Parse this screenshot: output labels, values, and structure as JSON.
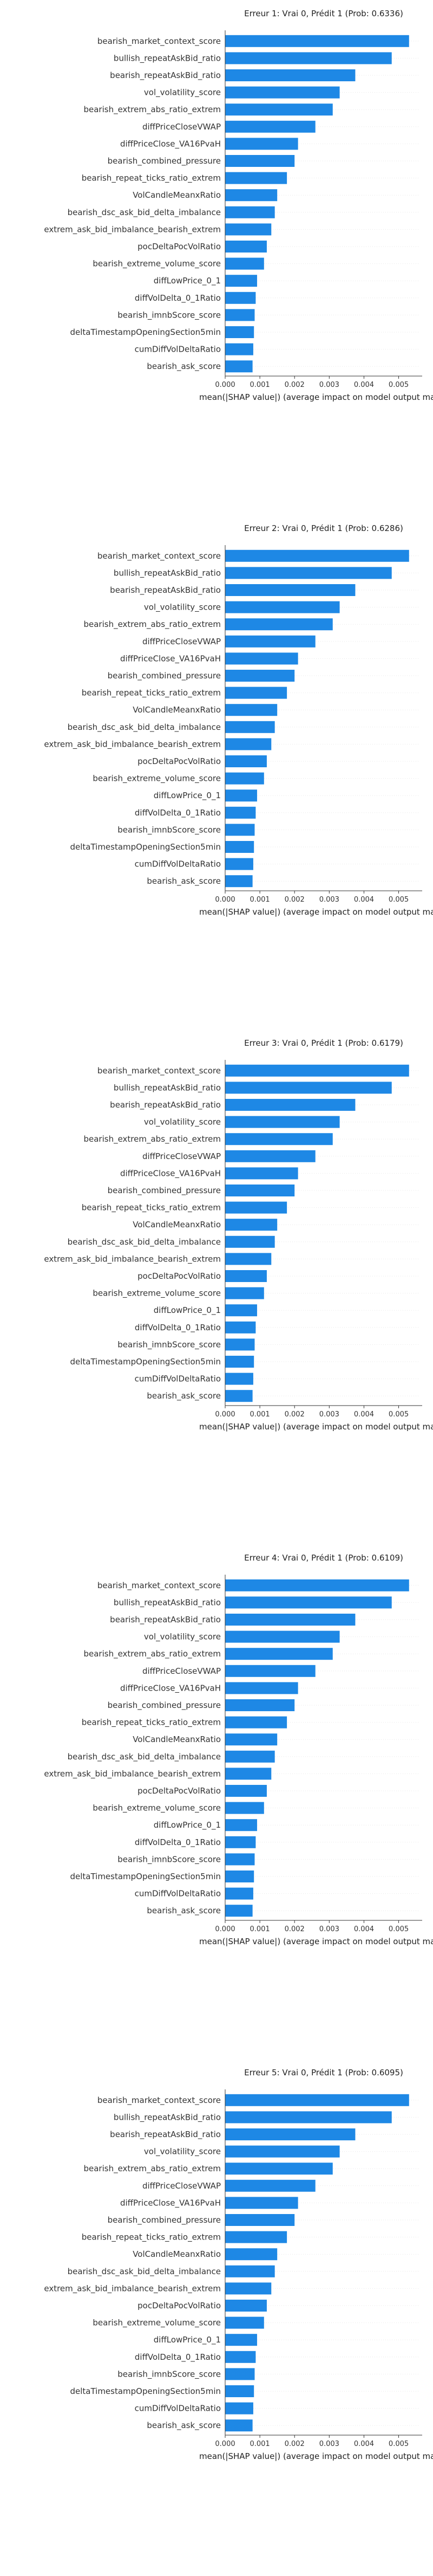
{
  "chart_data": [
    {
      "type": "bar",
      "orientation": "horizontal",
      "title": "Erreur 1: Vrai 0, Prédit 1 (Prob: 0.6336)",
      "xlabel": "mean(|SHAP value|) (average impact on model output magnitude)",
      "xlim": [
        0,
        0.0056
      ],
      "xticks": [
        "0.000",
        "0.001",
        "0.002",
        "0.003",
        "0.004",
        "0.005"
      ],
      "bar_color": "#1e88e5",
      "categories": [
        "bearish_market_context_score",
        "bullish_repeatAskBid_ratio",
        "bearish_repeatAskBid_ratio",
        "vol_volatility_score",
        "bearish_extrem_abs_ratio_extrem",
        "diffPriceCloseVWAP",
        "diffPriceClose_VA16PvaH",
        "bearish_combined_pressure",
        "bearish_repeat_ticks_ratio_extrem",
        "VolCandleMeanxRatio",
        "bearish_dsc_ask_bid_delta_imbalance",
        "extrem_ask_bid_imbalance_bearish_extrem",
        "pocDeltaPocVolRatio",
        "bearish_extreme_volume_score",
        "diffLowPrice_0_1",
        "diffVolDelta_0_1Ratio",
        "bearish_imnbScore_score",
        "deltaTimestampOpeningSection5min",
        "cumDiffVolDeltaRatio",
        "bearish_ask_score"
      ],
      "values": [
        0.0053,
        0.0048,
        0.00375,
        0.0033,
        0.0031,
        0.0026,
        0.0021,
        0.002,
        0.00178,
        0.0015,
        0.00143,
        0.00133,
        0.0012,
        0.00112,
        0.00092,
        0.00088,
        0.00085,
        0.00083,
        0.00081,
        0.00079
      ]
    },
    {
      "type": "bar",
      "orientation": "horizontal",
      "title": "Erreur 2: Vrai 0, Prédit 1 (Prob: 0.6286)",
      "xlabel": "mean(|SHAP value|) (average impact on model output magnitude)",
      "xlim": [
        0,
        0.0056
      ],
      "xticks": [
        "0.000",
        "0.001",
        "0.002",
        "0.003",
        "0.004",
        "0.005"
      ],
      "bar_color": "#1e88e5",
      "categories": [
        "bearish_market_context_score",
        "bullish_repeatAskBid_ratio",
        "bearish_repeatAskBid_ratio",
        "vol_volatility_score",
        "bearish_extrem_abs_ratio_extrem",
        "diffPriceCloseVWAP",
        "diffPriceClose_VA16PvaH",
        "bearish_combined_pressure",
        "bearish_repeat_ticks_ratio_extrem",
        "VolCandleMeanxRatio",
        "bearish_dsc_ask_bid_delta_imbalance",
        "extrem_ask_bid_imbalance_bearish_extrem",
        "pocDeltaPocVolRatio",
        "bearish_extreme_volume_score",
        "diffLowPrice_0_1",
        "diffVolDelta_0_1Ratio",
        "bearish_imnbScore_score",
        "deltaTimestampOpeningSection5min",
        "cumDiffVolDeltaRatio",
        "bearish_ask_score"
      ],
      "values": [
        0.0053,
        0.0048,
        0.00375,
        0.0033,
        0.0031,
        0.0026,
        0.0021,
        0.002,
        0.00178,
        0.0015,
        0.00143,
        0.00133,
        0.0012,
        0.00112,
        0.00092,
        0.00088,
        0.00085,
        0.00083,
        0.00081,
        0.00079
      ]
    },
    {
      "type": "bar",
      "orientation": "horizontal",
      "title": "Erreur 3: Vrai 0, Prédit 1 (Prob: 0.6179)",
      "xlabel": "mean(|SHAP value|) (average impact on model output magnitude)",
      "xlim": [
        0,
        0.0056
      ],
      "xticks": [
        "0.000",
        "0.001",
        "0.002",
        "0.003",
        "0.004",
        "0.005"
      ],
      "bar_color": "#1e88e5",
      "categories": [
        "bearish_market_context_score",
        "bullish_repeatAskBid_ratio",
        "bearish_repeatAskBid_ratio",
        "vol_volatility_score",
        "bearish_extrem_abs_ratio_extrem",
        "diffPriceCloseVWAP",
        "diffPriceClose_VA16PvaH",
        "bearish_combined_pressure",
        "bearish_repeat_ticks_ratio_extrem",
        "VolCandleMeanxRatio",
        "bearish_dsc_ask_bid_delta_imbalance",
        "extrem_ask_bid_imbalance_bearish_extrem",
        "pocDeltaPocVolRatio",
        "bearish_extreme_volume_score",
        "diffLowPrice_0_1",
        "diffVolDelta_0_1Ratio",
        "bearish_imnbScore_score",
        "deltaTimestampOpeningSection5min",
        "cumDiffVolDeltaRatio",
        "bearish_ask_score"
      ],
      "values": [
        0.0053,
        0.0048,
        0.00375,
        0.0033,
        0.0031,
        0.0026,
        0.0021,
        0.002,
        0.00178,
        0.0015,
        0.00143,
        0.00133,
        0.0012,
        0.00112,
        0.00092,
        0.00088,
        0.00085,
        0.00083,
        0.00081,
        0.00079
      ]
    },
    {
      "type": "bar",
      "orientation": "horizontal",
      "title": "Erreur 4: Vrai 0, Prédit 1 (Prob: 0.6109)",
      "xlabel": "mean(|SHAP value|) (average impact on model output magnitude)",
      "xlim": [
        0,
        0.0056
      ],
      "xticks": [
        "0.000",
        "0.001",
        "0.002",
        "0.003",
        "0.004",
        "0.005"
      ],
      "bar_color": "#1e88e5",
      "categories": [
        "bearish_market_context_score",
        "bullish_repeatAskBid_ratio",
        "bearish_repeatAskBid_ratio",
        "vol_volatility_score",
        "bearish_extrem_abs_ratio_extrem",
        "diffPriceCloseVWAP",
        "diffPriceClose_VA16PvaH",
        "bearish_combined_pressure",
        "bearish_repeat_ticks_ratio_extrem",
        "VolCandleMeanxRatio",
        "bearish_dsc_ask_bid_delta_imbalance",
        "extrem_ask_bid_imbalance_bearish_extrem",
        "pocDeltaPocVolRatio",
        "bearish_extreme_volume_score",
        "diffLowPrice_0_1",
        "diffVolDelta_0_1Ratio",
        "bearish_imnbScore_score",
        "deltaTimestampOpeningSection5min",
        "cumDiffVolDeltaRatio",
        "bearish_ask_score"
      ],
      "values": [
        0.0053,
        0.0048,
        0.00375,
        0.0033,
        0.0031,
        0.0026,
        0.0021,
        0.002,
        0.00178,
        0.0015,
        0.00143,
        0.00133,
        0.0012,
        0.00112,
        0.00092,
        0.00088,
        0.00085,
        0.00083,
        0.00081,
        0.00079
      ]
    },
    {
      "type": "bar",
      "orientation": "horizontal",
      "title": "Erreur 5: Vrai 0, Prédit 1 (Prob: 0.6095)",
      "xlabel": "mean(|SHAP value|) (average impact on model output magnitude)",
      "xlim": [
        0,
        0.0056
      ],
      "xticks": [
        "0.000",
        "0.001",
        "0.002",
        "0.003",
        "0.004",
        "0.005"
      ],
      "bar_color": "#1e88e5",
      "categories": [
        "bearish_market_context_score",
        "bullish_repeatAskBid_ratio",
        "bearish_repeatAskBid_ratio",
        "vol_volatility_score",
        "bearish_extrem_abs_ratio_extrem",
        "diffPriceCloseVWAP",
        "diffPriceClose_VA16PvaH",
        "bearish_combined_pressure",
        "bearish_repeat_ticks_ratio_extrem",
        "VolCandleMeanxRatio",
        "bearish_dsc_ask_bid_delta_imbalance",
        "extrem_ask_bid_imbalance_bearish_extrem",
        "pocDeltaPocVolRatio",
        "bearish_extreme_volume_score",
        "diffLowPrice_0_1",
        "diffVolDelta_0_1Ratio",
        "bearish_imnbScore_score",
        "deltaTimestampOpeningSection5min",
        "cumDiffVolDeltaRatio",
        "bearish_ask_score"
      ],
      "values": [
        0.0053,
        0.0048,
        0.00375,
        0.0033,
        0.0031,
        0.0026,
        0.0021,
        0.002,
        0.00178,
        0.0015,
        0.00143,
        0.00133,
        0.0012,
        0.00112,
        0.00092,
        0.00088,
        0.00085,
        0.00083,
        0.00081,
        0.00079
      ]
    }
  ]
}
